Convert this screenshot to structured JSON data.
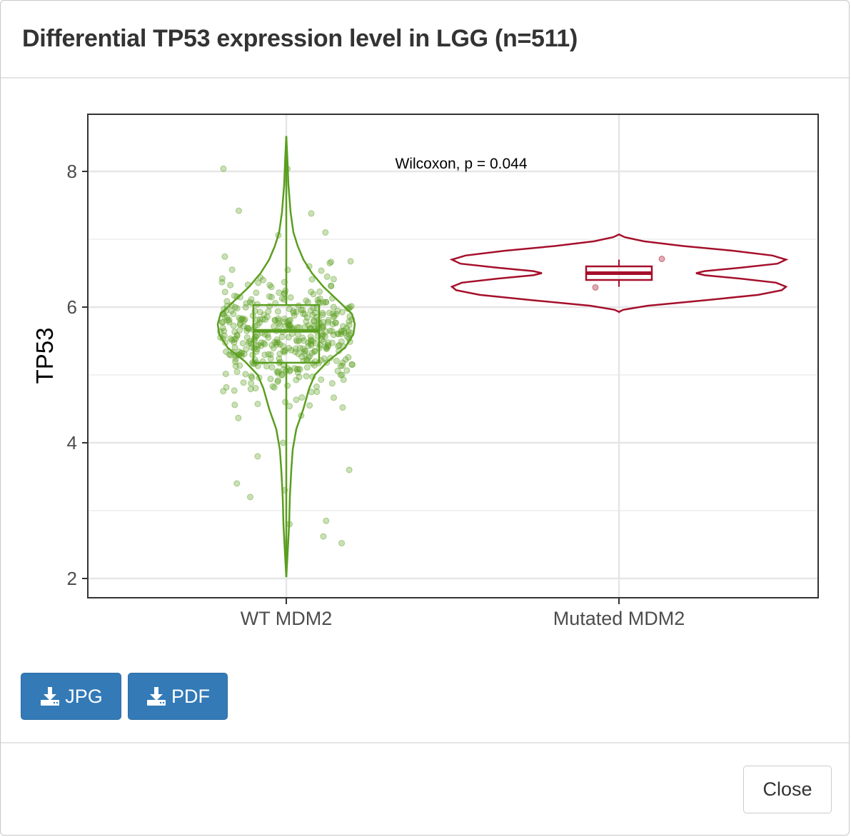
{
  "modal": {
    "title": "Differential TP53 expression level in LGG (n=511)"
  },
  "buttons": {
    "jpg_label": "JPG",
    "pdf_label": "PDF",
    "close_label": "Close"
  },
  "icons": {
    "download": "download-icon"
  },
  "colors": {
    "wt": "#5a9e1f",
    "mutated": "#a50f2b",
    "primary_button": "#337ab7"
  },
  "chart_data": {
    "type": "violin",
    "ylabel": "TP53",
    "ylim": [
      1.75,
      8.85
    ],
    "yticks": [
      2,
      4,
      6,
      8
    ],
    "categories": [
      "WT MDM2",
      "Mutated MDM2"
    ],
    "annotation": "Wilcoxon, p = 0.044",
    "grid": true,
    "groups": [
      {
        "name": "WT MDM2",
        "color": "#5a9e1f",
        "box": {
          "q1": 5.18,
          "median": 5.65,
          "q3": 6.03,
          "whisker_low": 2.02,
          "whisker_high": 8.52
        },
        "violin_range": [
          2.02,
          8.52
        ],
        "points_count": 507,
        "sample_points": [
          8.04,
          8.04,
          7.42,
          7.38,
          7.1,
          7.06,
          6.6,
          6.55,
          6.2,
          5.9,
          5.7,
          5.5,
          5.2,
          4.9,
          4.6,
          4.4,
          4.0,
          3.8,
          3.6,
          3.4,
          3.3,
          3.2,
          2.85,
          2.8,
          2.62,
          2.52
        ]
      },
      {
        "name": "Mutated MDM2",
        "color": "#a50f2b",
        "box": {
          "q1": 6.4,
          "median": 6.5,
          "q3": 6.6,
          "whisker_low": 6.3,
          "whisker_high": 6.7
        },
        "violin_range": [
          5.93,
          7.07
        ],
        "points": [
          6.29,
          6.71
        ]
      }
    ]
  }
}
